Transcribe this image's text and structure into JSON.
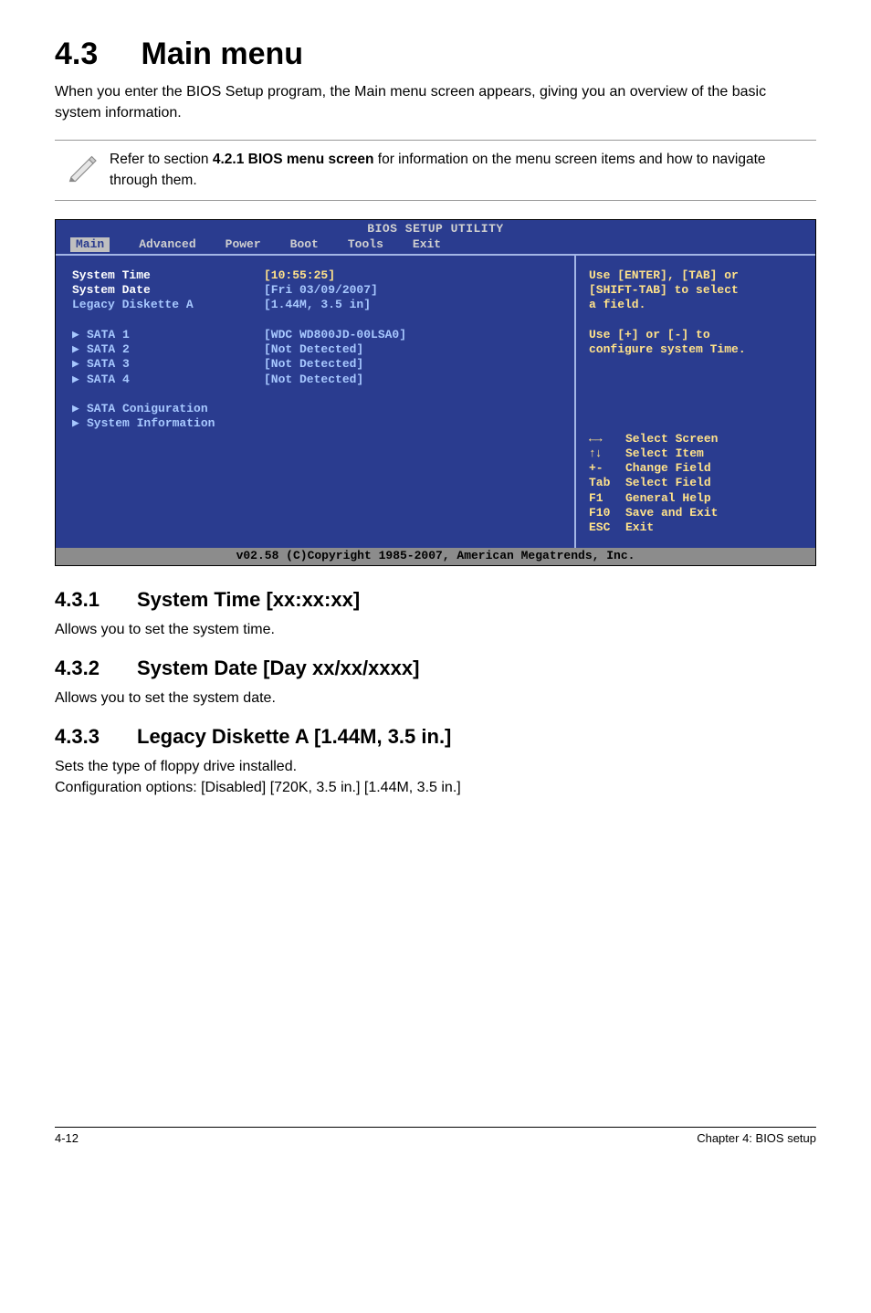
{
  "heading": {
    "num": "4.3",
    "title": "Main menu"
  },
  "intro": "When you enter the BIOS Setup program, the Main menu screen appears, giving you an overview of the basic system information.",
  "note": {
    "prefix": "Refer to section ",
    "bold": "4.2.1  BIOS menu screen",
    "suffix": " for information on the menu screen items and how to navigate through them."
  },
  "bios": {
    "title": "BIOS SETUP UTILITY",
    "menu": [
      "Main",
      "Advanced",
      "Power",
      "Boot",
      "Tools",
      "Exit"
    ],
    "active_menu": 0,
    "left_rows_a": [
      {
        "label": "System Time",
        "value": "[10:55:25]",
        "white": true,
        "yellow": true
      },
      {
        "label": "System Date",
        "value": "[Fri 03/09/2007]",
        "white": true
      },
      {
        "label": "Legacy Diskette A",
        "value": "[1.44M, 3.5 in]"
      }
    ],
    "left_rows_b": [
      {
        "label": "SATA 1",
        "value": "[WDC WD800JD-00LSA0]"
      },
      {
        "label": "SATA 2",
        "value": "[Not Detected]"
      },
      {
        "label": "SATA 3",
        "value": "[Not Detected]"
      },
      {
        "label": "SATA 4",
        "value": "[Not Detected]"
      }
    ],
    "left_rows_c": [
      {
        "label": "SATA Coniguration"
      },
      {
        "label": "System Information"
      }
    ],
    "help_top": [
      "Use [ENTER], [TAB] or",
      "[SHIFT-TAB] to select",
      "a field.",
      "",
      "Use [+] or [-] to",
      "configure system Time."
    ],
    "keys": [
      {
        "k": "←→",
        "d": "Select Screen",
        "arrows": true
      },
      {
        "k": "↑↓",
        "d": "Select Item",
        "arrows": true
      },
      {
        "k": "+-",
        "d": "Change Field"
      },
      {
        "k": "Tab",
        "d": "Select Field"
      },
      {
        "k": "F1",
        "d": "General Help"
      },
      {
        "k": "F10",
        "d": "Save and Exit"
      },
      {
        "k": "ESC",
        "d": "Exit"
      }
    ],
    "footer": "v02.58 (C)Copyright 1985-2007, American Megatrends, Inc."
  },
  "subs": [
    {
      "num": "4.3.1",
      "title": "System Time [xx:xx:xx]",
      "body": "Allows you to set the system time."
    },
    {
      "num": "4.3.2",
      "title": "System Date [Day xx/xx/xxxx]",
      "body": "Allows you to set the system date."
    },
    {
      "num": "4.3.3",
      "title": "Legacy Diskette A [1.44M, 3.5 in.]",
      "body": "Sets the type of floppy drive installed.",
      "body2": "Configuration options: [Disabled] [720K, 3.5 in.] [1.44M, 3.5 in.]"
    }
  ],
  "footer": {
    "left": "4-12",
    "right": "Chapter 4: BIOS setup"
  },
  "colors": {
    "bios_bg": "#2a3c8f",
    "bios_border": "#a3b6e6",
    "bios_text": "#a7c8ff",
    "bios_yellow": "#ffe28a",
    "bios_footer_bg": "#8c8c8c"
  }
}
